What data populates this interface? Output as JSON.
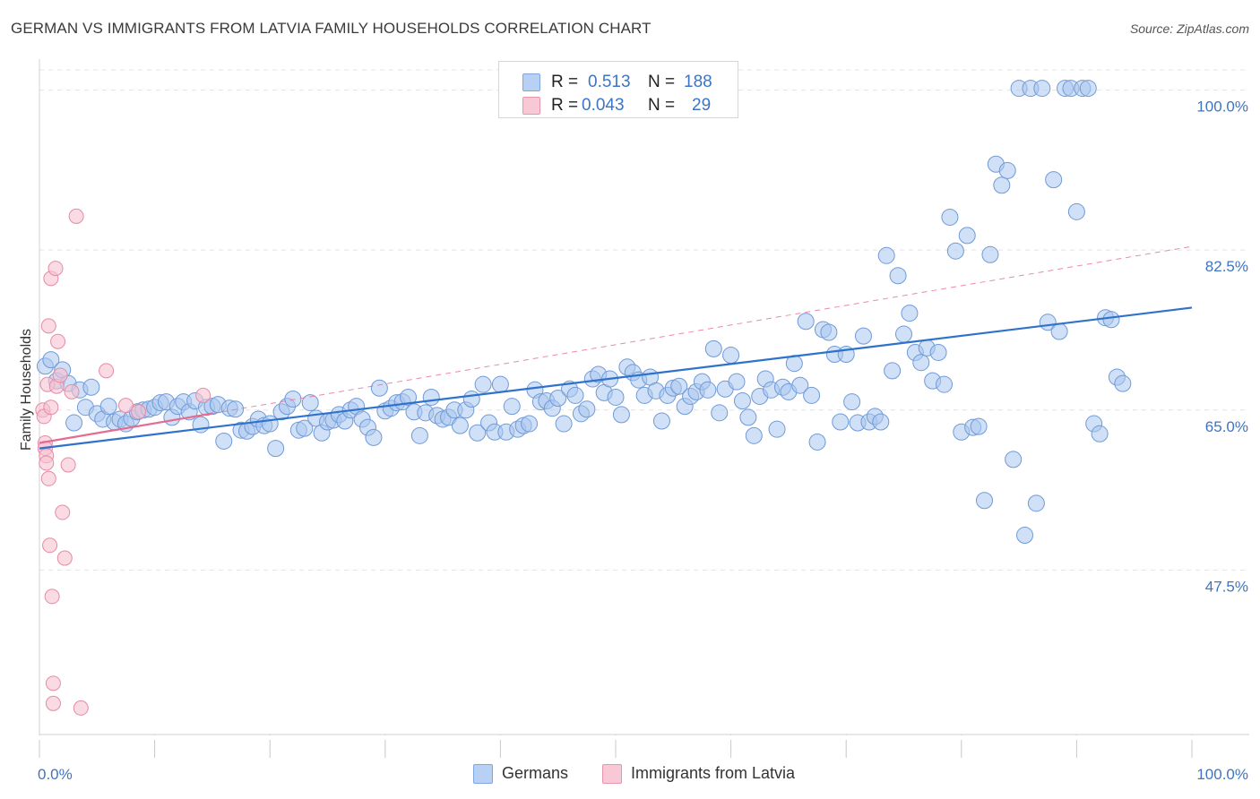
{
  "title": "GERMAN VS IMMIGRANTS FROM LATVIA FAMILY HOUSEHOLDS CORRELATION CHART",
  "source": "Source: ZipAtlas.com",
  "legend_top": {
    "rows": [
      {
        "r_label": "R =",
        "r_value": "0.513",
        "n_label": "N =",
        "n_value": "188",
        "fill": "#b7d0f3",
        "stroke": "#7ea6e0"
      },
      {
        "r_label": "R =",
        "r_value": "0.043",
        "n_label": "N =",
        "n_value": "29",
        "fill": "#f8c8d6",
        "stroke": "#ea94ad"
      }
    ]
  },
  "legend_bottom": {
    "germans": "Germans",
    "latvia": "Immigrants from Latvia"
  },
  "colors": {
    "blue_fill": "#aac6ee",
    "blue_stroke": "#6f9ad8",
    "blue_line": "#2f72cc",
    "pink_fill": "#f6c2d1",
    "pink_stroke": "#e58ba6",
    "pink_line": "#e56b93",
    "grid": "#e3e3e3",
    "tick_text": "#3d74c6"
  },
  "chart_data": {
    "type": "scatter",
    "title": "GERMAN VS IMMIGRANTS FROM LATVIA FAMILY HOUSEHOLDS CORRELATION CHART",
    "xlabel": "",
    "ylabel": "Family Households",
    "xlim": [
      0,
      100
    ],
    "ylim": [
      29.5,
      103
    ],
    "x_tick_labels": [
      {
        "value": 0,
        "label": "0.0%"
      },
      {
        "value": 100,
        "label": "100.0%"
      }
    ],
    "y_ticks": [
      {
        "value": 47.5,
        "label": "47.5%"
      },
      {
        "value": 65.0,
        "label": "65.0%"
      },
      {
        "value": 82.5,
        "label": "82.5%"
      },
      {
        "value": 100.0,
        "label": "100.0%"
      }
    ],
    "grid": "horizontal dashed",
    "legend": "top-center",
    "series": [
      {
        "name": "Germans",
        "r": 0.513,
        "n": 188,
        "trend": {
          "x": [
            0,
            100
          ],
          "y": [
            60.8,
            76.2
          ]
        },
        "trend_dashed": false,
        "points": [
          [
            0.5,
            69.8
          ],
          [
            1,
            70.5
          ],
          [
            1.5,
            68.2
          ],
          [
            2,
            69.4
          ],
          [
            2.5,
            67.9
          ],
          [
            3,
            63.6
          ],
          [
            3.5,
            67.2
          ],
          [
            4,
            65.3
          ],
          [
            4.5,
            67.5
          ],
          [
            5,
            64.6
          ],
          [
            5.5,
            64.0
          ],
          [
            6,
            65.4
          ],
          [
            6.5,
            63.7
          ],
          [
            7,
            64.0
          ],
          [
            7.5,
            63.5
          ],
          [
            8,
            64.1
          ],
          [
            8.5,
            64.8
          ],
          [
            9,
            65.0
          ],
          [
            9.5,
            65.1
          ],
          [
            10,
            65.3
          ],
          [
            10.5,
            65.8
          ],
          [
            11,
            65.9
          ],
          [
            11.5,
            64.2
          ],
          [
            12,
            65.4
          ],
          [
            12.5,
            65.9
          ],
          [
            13,
            64.8
          ],
          [
            13.5,
            66.0
          ],
          [
            14,
            63.4
          ],
          [
            14.5,
            65.3
          ],
          [
            15,
            65.4
          ],
          [
            15.5,
            65.6
          ],
          [
            16,
            61.6
          ],
          [
            16.5,
            65.2
          ],
          [
            17,
            65.1
          ],
          [
            17.5,
            62.8
          ],
          [
            18,
            62.7
          ],
          [
            18.5,
            63.2
          ],
          [
            19,
            64.0
          ],
          [
            19.5,
            63.3
          ],
          [
            20,
            63.5
          ],
          [
            20.5,
            60.8
          ],
          [
            21,
            64.8
          ],
          [
            21.5,
            65.4
          ],
          [
            22,
            66.2
          ],
          [
            22.5,
            62.8
          ],
          [
            23,
            63.0
          ],
          [
            23.5,
            65.8
          ],
          [
            24,
            64.1
          ],
          [
            24.5,
            62.5
          ],
          [
            25,
            63.7
          ],
          [
            25.5,
            63.9
          ],
          [
            26,
            64.5
          ],
          [
            26.5,
            63.8
          ],
          [
            27,
            65.0
          ],
          [
            27.5,
            65.4
          ],
          [
            28,
            64.0
          ],
          [
            28.5,
            63.1
          ],
          [
            29,
            62.0
          ],
          [
            29.5,
            67.4
          ],
          [
            30,
            64.9
          ],
          [
            30.5,
            65.2
          ],
          [
            31,
            65.8
          ],
          [
            31.5,
            65.9
          ],
          [
            32,
            66.4
          ],
          [
            32.5,
            64.8
          ],
          [
            33,
            62.2
          ],
          [
            33.5,
            64.7
          ],
          [
            34,
            66.4
          ],
          [
            34.5,
            64.4
          ],
          [
            35,
            64.0
          ],
          [
            35.5,
            64.2
          ],
          [
            36,
            65.0
          ],
          [
            36.5,
            63.3
          ],
          [
            37,
            65.0
          ],
          [
            37.5,
            66.2
          ],
          [
            38,
            62.5
          ],
          [
            38.5,
            67.8
          ],
          [
            39,
            63.6
          ],
          [
            39.5,
            62.6
          ],
          [
            40,
            67.8
          ],
          [
            40.5,
            62.6
          ],
          [
            41,
            65.4
          ],
          [
            41.5,
            62.9
          ],
          [
            42,
            63.3
          ],
          [
            42.5,
            63.5
          ],
          [
            43,
            67.2
          ],
          [
            43.5,
            65.9
          ],
          [
            44,
            66.0
          ],
          [
            44.5,
            65.2
          ],
          [
            45,
            66.3
          ],
          [
            45.5,
            63.5
          ],
          [
            46,
            67.3
          ],
          [
            46.5,
            66.6
          ],
          [
            47,
            64.6
          ],
          [
            47.5,
            65.1
          ],
          [
            48,
            68.4
          ],
          [
            48.5,
            68.9
          ],
          [
            49,
            66.9
          ],
          [
            49.5,
            68.4
          ],
          [
            50,
            66.4
          ],
          [
            50.5,
            64.5
          ],
          [
            51,
            69.7
          ],
          [
            51.5,
            69.1
          ],
          [
            52,
            68.3
          ],
          [
            52.5,
            66.6
          ],
          [
            53,
            68.6
          ],
          [
            53.5,
            67.1
          ],
          [
            54,
            63.8
          ],
          [
            54.5,
            66.6
          ],
          [
            55,
            67.4
          ],
          [
            55.5,
            67.6
          ],
          [
            56,
            65.4
          ],
          [
            56.5,
            66.5
          ],
          [
            57,
            67.0
          ],
          [
            57.5,
            68.1
          ],
          [
            58,
            67.2
          ],
          [
            58.5,
            71.7
          ],
          [
            59,
            64.7
          ],
          [
            59.5,
            67.3
          ],
          [
            60,
            71.0
          ],
          [
            60.5,
            68.1
          ],
          [
            61,
            66.0
          ],
          [
            61.5,
            64.2
          ],
          [
            62,
            62.2
          ],
          [
            62.5,
            66.5
          ],
          [
            63,
            68.4
          ],
          [
            63.5,
            67.2
          ],
          [
            64,
            62.9
          ],
          [
            64.5,
            67.5
          ],
          [
            65,
            67.0
          ],
          [
            65.5,
            70.1
          ],
          [
            66,
            67.7
          ],
          [
            66.5,
            74.7
          ],
          [
            67,
            66.6
          ],
          [
            67.5,
            61.5
          ],
          [
            68,
            73.8
          ],
          [
            68.5,
            73.5
          ],
          [
            69,
            71.1
          ],
          [
            69.5,
            63.7
          ],
          [
            70,
            71.1
          ],
          [
            70.5,
            65.9
          ],
          [
            71,
            63.6
          ],
          [
            71.5,
            73.1
          ],
          [
            72,
            63.7
          ],
          [
            72.5,
            64.3
          ],
          [
            73,
            63.7
          ],
          [
            73.5,
            81.9
          ],
          [
            74,
            69.3
          ],
          [
            74.5,
            79.7
          ],
          [
            75,
            73.3
          ],
          [
            75.5,
            75.6
          ],
          [
            76,
            71.3
          ],
          [
            76.5,
            70.2
          ],
          [
            77,
            71.8
          ],
          [
            77.5,
            68.2
          ],
          [
            78,
            71.3
          ],
          [
            78.5,
            67.8
          ],
          [
            79,
            86.1
          ],
          [
            79.5,
            82.4
          ],
          [
            80,
            62.6
          ],
          [
            80.5,
            84.1
          ],
          [
            81,
            63.1
          ],
          [
            81.5,
            63.2
          ],
          [
            82,
            55.1
          ],
          [
            82.5,
            82.0
          ],
          [
            83,
            91.9
          ],
          [
            83.5,
            89.6
          ],
          [
            84,
            91.2
          ],
          [
            84.5,
            59.6
          ],
          [
            85,
            100.2
          ],
          [
            85.5,
            51.3
          ],
          [
            86,
            100.2
          ],
          [
            86.5,
            54.8
          ],
          [
            87,
            100.2
          ],
          [
            87.5,
            74.6
          ],
          [
            88,
            90.2
          ],
          [
            88.5,
            73.6
          ],
          [
            89,
            100.2
          ],
          [
            89.5,
            100.2
          ],
          [
            90,
            86.7
          ],
          [
            90.5,
            100.2
          ],
          [
            91,
            100.2
          ],
          [
            91.5,
            63.5
          ],
          [
            92,
            62.4
          ],
          [
            92.5,
            75.1
          ],
          [
            93,
            74.9
          ],
          [
            93.5,
            68.6
          ],
          [
            94,
            67.9
          ]
        ]
      },
      {
        "name": "Immigrants from Latvia",
        "r": 0.043,
        "n": 29,
        "trend": {
          "x": [
            0,
            100
          ],
          "y": [
            61.4,
            82.9
          ]
        },
        "trend_solid_until_x": 15,
        "points": [
          [
            0.3,
            65.0
          ],
          [
            0.4,
            64.3
          ],
          [
            0.5,
            61.4
          ],
          [
            0.5,
            60.8
          ],
          [
            0.6,
            60.0
          ],
          [
            0.6,
            59.2
          ],
          [
            0.7,
            67.8
          ],
          [
            0.8,
            74.2
          ],
          [
            0.8,
            57.5
          ],
          [
            0.9,
            50.2
          ],
          [
            1.0,
            79.4
          ],
          [
            1.0,
            65.3
          ],
          [
            1.1,
            44.6
          ],
          [
            1.2,
            35.1
          ],
          [
            1.2,
            32.9
          ],
          [
            1.4,
            80.5
          ],
          [
            1.5,
            67.6
          ],
          [
            1.6,
            72.5
          ],
          [
            1.8,
            68.8
          ],
          [
            2.0,
            53.8
          ],
          [
            2.2,
            48.8
          ],
          [
            2.5,
            59.0
          ],
          [
            2.8,
            67.0
          ],
          [
            3.2,
            86.2
          ],
          [
            3.6,
            32.4
          ],
          [
            5.8,
            69.3
          ],
          [
            7.5,
            65.5
          ],
          [
            8.6,
            64.8
          ],
          [
            14.2,
            66.6
          ]
        ]
      }
    ]
  }
}
